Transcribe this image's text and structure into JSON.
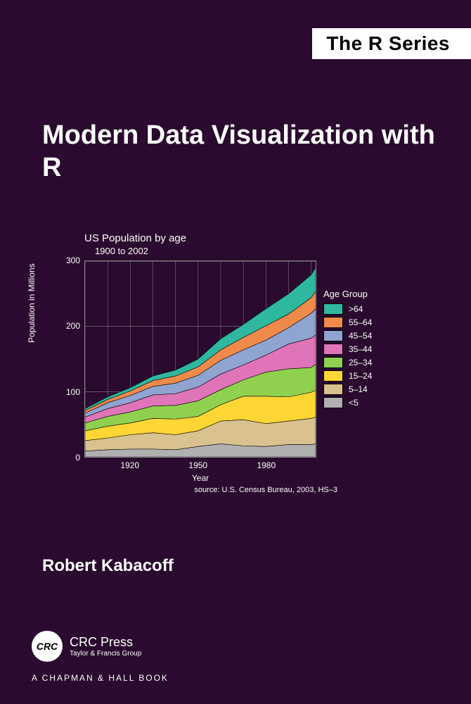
{
  "series_banner": "The R Series",
  "title": "Modern Data Visualization with R",
  "author": "Robert Kabacoff",
  "publisher": {
    "logo_text": "CRC",
    "name": "CRC Press",
    "subtitle": "Taylor & Francis Group"
  },
  "imprint": "A CHAPMAN & HALL BOOK",
  "chart": {
    "type": "stacked-area",
    "title": "US Population by age",
    "subtitle": "1900 to 2002",
    "ylabel": "Population in Millions",
    "xlabel": "Year",
    "source": "source: U.S. Census Bureau, 2003, HS–3",
    "background_color": "#2a0a2e",
    "grid_color": "#888888",
    "text_color": "#ffffff",
    "xlim": [
      1900,
      2002
    ],
    "ylim": [
      0,
      300
    ],
    "ytick_step": 100,
    "yticks": [
      0,
      100,
      200,
      300
    ],
    "xticks": [
      1920,
      1950,
      1980
    ],
    "legend_title": "Age Group",
    "series": [
      {
        "name": ">64",
        "color": "#2fb8a0"
      },
      {
        "name": "55–64",
        "color": "#f08a4b"
      },
      {
        "name": "45–54",
        "color": "#8fa4d1"
      },
      {
        "name": "35–44",
        "color": "#e074b8"
      },
      {
        "name": "25–34",
        "color": "#8fd14f"
      },
      {
        "name": "15–24",
        "color": "#ffd633"
      },
      {
        "name": "5–14",
        "color": "#d9c28f"
      },
      {
        "name": "<5",
        "color": "#b0b0b0"
      }
    ],
    "years": [
      1900,
      1910,
      1920,
      1930,
      1940,
      1950,
      1960,
      1970,
      1980,
      1990,
      2000,
      2002
    ],
    "stacked_values": {
      "<5": [
        9,
        11,
        12,
        12,
        11,
        16,
        20,
        17,
        16,
        19,
        19,
        20
      ],
      "5-14": [
        16,
        18,
        22,
        25,
        23,
        24,
        35,
        40,
        35,
        36,
        40,
        41
      ],
      "15-24": [
        15,
        18,
        18,
        22,
        24,
        22,
        25,
        36,
        42,
        37,
        40,
        41
      ],
      "25-34": [
        12,
        15,
        17,
        19,
        21,
        24,
        23,
        25,
        37,
        43,
        38,
        40
      ],
      "35-44": [
        9,
        12,
        14,
        17,
        18,
        21,
        24,
        23,
        26,
        38,
        45,
        45
      ],
      "45-54": [
        6,
        9,
        11,
        13,
        16,
        18,
        21,
        23,
        23,
        25,
        38,
        40
      ],
      "55-64": [
        4,
        5,
        7,
        9,
        11,
        13,
        16,
        19,
        22,
        21,
        24,
        27
      ],
      ">64": [
        3,
        4,
        5,
        7,
        9,
        12,
        17,
        20,
        26,
        31,
        35,
        36
      ]
    }
  }
}
